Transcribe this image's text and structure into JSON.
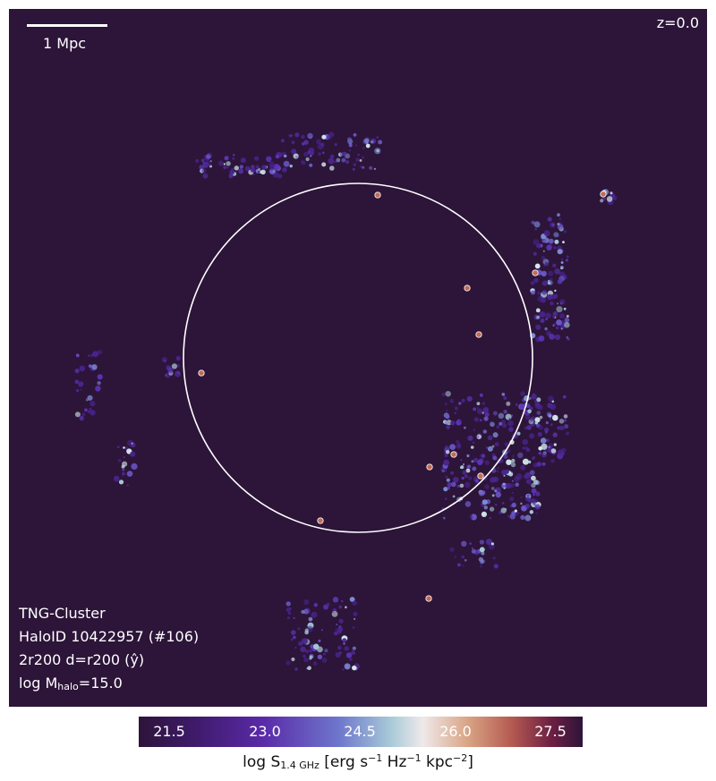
{
  "overlay": {
    "scalebar_label": "1 Mpc",
    "redshift": "z=0.0",
    "info": {
      "simulation": "TNG-Cluster",
      "halo_id": "HaloID 10422957 (#106)",
      "projection": "2r200 d=r200 (ŷ)",
      "halo_mass_prefix": "log M",
      "halo_mass_sub": "halo",
      "halo_mass_value": "=15.0"
    }
  },
  "colorbar": {
    "ticks": [
      "21.5",
      "23.0",
      "24.5",
      "26.0",
      "27.5"
    ],
    "label_prefix": "log S",
    "label_sub": "1.4 GHz",
    "label_mid1": " [erg s",
    "label_exp1": "−1",
    "label_mid2": " Hz",
    "label_exp2": "−1",
    "label_mid3": " kpc",
    "label_exp3": "−2",
    "label_end": "]"
  },
  "colors": {
    "background": "#2d1439",
    "circle": "#ffffff"
  }
}
